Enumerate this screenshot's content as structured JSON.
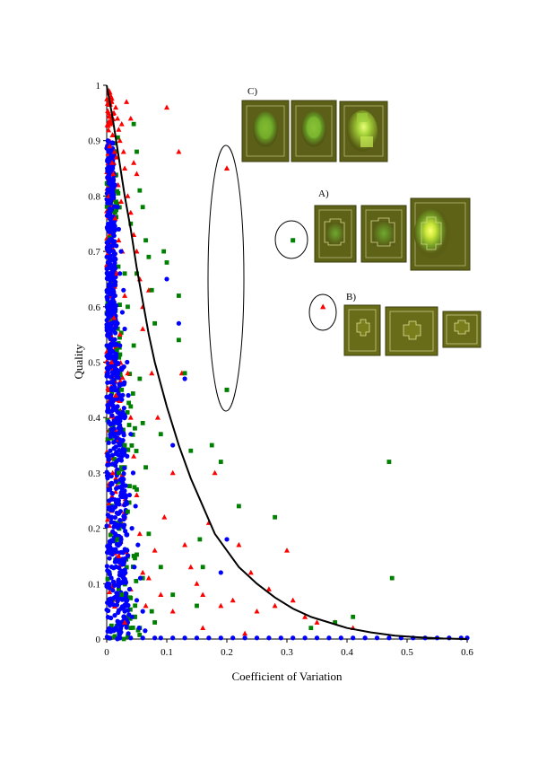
{
  "chart_data": {
    "type": "scatter",
    "title": "",
    "xlabel": "Coefficient of Variation",
    "ylabel": "Quality",
    "xlim": [
      0,
      0.6
    ],
    "ylim": [
      0,
      1
    ],
    "x_ticks": [
      "0",
      "0.1",
      "0.2",
      "0.3",
      "0.4",
      "0.5",
      "0.6"
    ],
    "y_ticks": [
      "0",
      "0.1",
      "0.2",
      "0.3",
      "0.4",
      "0.5",
      "0.6",
      "0.7",
      "0.8",
      "0.9",
      "1"
    ],
    "grid": false,
    "legend": "none",
    "colors": {
      "red": "#ff0000",
      "green": "#008000",
      "blue": "#0000ff",
      "curve": "#000000"
    },
    "series": [
      {
        "marker": "triangle",
        "color": "#ff0000",
        "points": [
          [
            0.004,
            0.99
          ],
          [
            0.008,
            0.97
          ],
          [
            0.012,
            0.95
          ],
          [
            0.006,
            0.93
          ],
          [
            0.015,
            0.96
          ],
          [
            0.01,
            0.91
          ],
          [
            0.018,
            0.94
          ],
          [
            0.005,
            0.89
          ],
          [
            0.02,
            0.92
          ],
          [
            0.013,
            0.88
          ],
          [
            0.009,
            0.86
          ],
          [
            0.022,
            0.9
          ],
          [
            0.016,
            0.87
          ],
          [
            0.003,
            0.95
          ],
          [
            0.025,
            0.93
          ],
          [
            0.007,
            0.98
          ],
          [
            0.011,
            0.84
          ],
          [
            0.019,
            0.82
          ],
          [
            0.028,
            0.88
          ],
          [
            0.004,
            0.8
          ],
          [
            0.024,
            0.79
          ],
          [
            0.03,
            0.85
          ],
          [
            0.014,
            0.76
          ],
          [
            0.035,
            0.8
          ],
          [
            0.02,
            0.72
          ],
          [
            0.04,
            0.77
          ],
          [
            0.026,
            0.7
          ],
          [
            0.045,
            0.73
          ],
          [
            0.017,
            0.66
          ],
          [
            0.05,
            0.7
          ],
          [
            0.03,
            0.62
          ],
          [
            0.055,
            0.65
          ],
          [
            0.012,
            0.58
          ],
          [
            0.06,
            0.6
          ],
          [
            0.022,
            0.55
          ],
          [
            0.008,
            0.5
          ],
          [
            0.035,
            0.48
          ],
          [
            0.015,
            0.44
          ],
          [
            0.04,
            0.4
          ],
          [
            0.02,
            0.36
          ],
          [
            0.045,
            0.33
          ],
          [
            0.01,
            0.3
          ],
          [
            0.05,
            0.26
          ],
          [
            0.03,
            0.22
          ],
          [
            0.055,
            0.19
          ],
          [
            0.02,
            0.15
          ],
          [
            0.06,
            0.12
          ],
          [
            0.04,
            0.09
          ],
          [
            0.065,
            0.06
          ],
          [
            0.03,
            0.03
          ],
          [
            0.07,
            0.11
          ],
          [
            0.08,
            0.16
          ],
          [
            0.09,
            0.08
          ],
          [
            0.1,
            0.96
          ],
          [
            0.12,
            0.88
          ],
          [
            0.096,
            0.22
          ],
          [
            0.13,
            0.17
          ],
          [
            0.14,
            0.13
          ],
          [
            0.15,
            0.1
          ],
          [
            0.16,
            0.08
          ],
          [
            0.17,
            0.21
          ],
          [
            0.18,
            0.3
          ],
          [
            0.19,
            0.06
          ],
          [
            0.2,
            0.85
          ],
          [
            0.21,
            0.07
          ],
          [
            0.22,
            0.17
          ],
          [
            0.24,
            0.12
          ],
          [
            0.25,
            0.05
          ],
          [
            0.27,
            0.09
          ],
          [
            0.28,
            0.06
          ],
          [
            0.3,
            0.16
          ],
          [
            0.31,
            0.07
          ],
          [
            0.33,
            0.04
          ],
          [
            0.35,
            0.03
          ],
          [
            0.38,
            0.03
          ],
          [
            0.41,
            0.02
          ],
          [
            0.06,
            0.56
          ],
          [
            0.07,
            0.63
          ],
          [
            0.075,
            0.48
          ],
          [
            0.085,
            0.4
          ],
          [
            0.11,
            0.05
          ],
          [
            0.125,
            0.48
          ],
          [
            0.045,
            0.86
          ],
          [
            0.05,
            0.84
          ],
          [
            0.04,
            0.94
          ],
          [
            0.033,
            0.97
          ],
          [
            0.11,
            0.3
          ],
          [
            0.16,
            0.02
          ],
          [
            0.23,
            0.01
          ],
          [
            0.36,
            0.6
          ]
        ]
      },
      {
        "marker": "square",
        "color": "#008000",
        "points": [
          [
            0.045,
            0.93
          ],
          [
            0.05,
            0.88
          ],
          [
            0.055,
            0.81
          ],
          [
            0.06,
            0.78
          ],
          [
            0.04,
            0.75
          ],
          [
            0.065,
            0.72
          ],
          [
            0.07,
            0.69
          ],
          [
            0.05,
            0.66
          ],
          [
            0.075,
            0.63
          ],
          [
            0.035,
            0.6
          ],
          [
            0.08,
            0.57
          ],
          [
            0.045,
            0.53
          ],
          [
            0.055,
            0.47
          ],
          [
            0.04,
            0.42
          ],
          [
            0.06,
            0.39
          ],
          [
            0.03,
            0.35
          ],
          [
            0.065,
            0.31
          ],
          [
            0.05,
            0.27
          ],
          [
            0.035,
            0.23
          ],
          [
            0.07,
            0.19
          ],
          [
            0.045,
            0.15
          ],
          [
            0.06,
            0.11
          ],
          [
            0.025,
            0.08
          ],
          [
            0.075,
            0.05
          ],
          [
            0.04,
            0.02
          ],
          [
            0.09,
            0.37
          ],
          [
            0.095,
            0.7
          ],
          [
            0.1,
            0.68
          ],
          [
            0.12,
            0.62
          ],
          [
            0.12,
            0.54
          ],
          [
            0.13,
            0.48
          ],
          [
            0.14,
            0.34
          ],
          [
            0.155,
            0.18
          ],
          [
            0.16,
            0.13
          ],
          [
            0.175,
            0.35
          ],
          [
            0.19,
            0.32
          ],
          [
            0.2,
            0.45
          ],
          [
            0.22,
            0.24
          ],
          [
            0.28,
            0.22
          ],
          [
            0.31,
            0.72
          ],
          [
            0.34,
            0.02
          ],
          [
            0.38,
            0.03
          ],
          [
            0.41,
            0.04
          ],
          [
            0.47,
            0.32
          ],
          [
            0.475,
            0.11
          ],
          [
            0.09,
            0.13
          ],
          [
            0.08,
            0.03
          ],
          [
            0.11,
            0.08
          ],
          [
            0.15,
            0.06
          ],
          [
            0.03,
            0.66
          ],
          [
            0.025,
            0.45
          ],
          [
            0.02,
            0.3
          ],
          [
            0.018,
            0.18
          ],
          [
            0.055,
            0.02
          ]
        ]
      },
      {
        "marker": "circle",
        "color": "#0000ff",
        "points": [
          [
            0.002,
            0.9
          ],
          [
            0.006,
            0.87
          ],
          [
            0.01,
            0.85
          ],
          [
            0.004,
            0.83
          ],
          [
            0.014,
            0.82
          ],
          [
            0.008,
            0.8
          ],
          [
            0.018,
            0.78
          ],
          [
            0.003,
            0.77
          ],
          [
            0.012,
            0.75
          ],
          [
            0.02,
            0.74
          ],
          [
            0.006,
            0.72
          ],
          [
            0.016,
            0.71
          ],
          [
            0.024,
            0.7
          ],
          [
            0.002,
            0.68
          ],
          [
            0.01,
            0.67
          ],
          [
            0.022,
            0.66
          ],
          [
            0.005,
            0.64
          ],
          [
            0.028,
            0.63
          ],
          [
            0.014,
            0.62
          ],
          [
            0.008,
            0.6
          ],
          [
            0.026,
            0.59
          ],
          [
            0.003,
            0.58
          ],
          [
            0.018,
            0.57
          ],
          [
            0.03,
            0.56
          ],
          [
            0.01,
            0.54
          ],
          [
            0.022,
            0.53
          ],
          [
            0.005,
            0.52
          ],
          [
            0.034,
            0.5
          ],
          [
            0.014,
            0.49
          ],
          [
            0.002,
            0.48
          ],
          [
            0.026,
            0.46
          ],
          [
            0.008,
            0.45
          ],
          [
            0.036,
            0.44
          ],
          [
            0.018,
            0.42
          ],
          [
            0.004,
            0.41
          ],
          [
            0.03,
            0.4
          ],
          [
            0.012,
            0.38
          ],
          [
            0.04,
            0.37
          ],
          [
            0.022,
            0.36
          ],
          [
            0.006,
            0.34
          ],
          [
            0.034,
            0.33
          ],
          [
            0.016,
            0.32
          ],
          [
            0.044,
            0.3
          ],
          [
            0.026,
            0.29
          ],
          [
            0.009,
            0.28
          ],
          [
            0.038,
            0.26
          ],
          [
            0.02,
            0.25
          ],
          [
            0.048,
            0.24
          ],
          [
            0.03,
            0.22
          ],
          [
            0.012,
            0.21
          ],
          [
            0.042,
            0.2
          ],
          [
            0.024,
            0.18
          ],
          [
            0.052,
            0.17
          ],
          [
            0.034,
            0.16
          ],
          [
            0.015,
            0.14
          ],
          [
            0.046,
            0.13
          ],
          [
            0.028,
            0.12
          ],
          [
            0.056,
            0.11
          ],
          [
            0.038,
            0.09
          ],
          [
            0.018,
            0.08
          ],
          [
            0.05,
            0.07
          ],
          [
            0.032,
            0.06
          ],
          [
            0.06,
            0.05
          ],
          [
            0.042,
            0.04
          ],
          [
            0.022,
            0.03
          ],
          [
            0.054,
            0.02
          ],
          [
            0.036,
            0.01
          ],
          [
            0.064,
            0.015
          ],
          [
            0.1,
            0.65
          ],
          [
            0.12,
            0.57
          ],
          [
            0.13,
            0.47
          ],
          [
            0.11,
            0.35
          ],
          [
            0.2,
            0.18
          ],
          [
            0.19,
            0.12
          ],
          [
            0.03,
            0.05
          ],
          [
            0.015,
            0.02
          ],
          [
            0.09,
            0.002
          ],
          [
            0.13,
            0.002
          ],
          [
            0.17,
            0.002
          ],
          [
            0.21,
            0.002
          ],
          [
            0.25,
            0.002
          ],
          [
            0.29,
            0.002
          ],
          [
            0.33,
            0.002
          ],
          [
            0.37,
            0.002
          ],
          [
            0.41,
            0.002
          ],
          [
            0.45,
            0.002
          ],
          [
            0.49,
            0.002
          ],
          [
            0.53,
            0.002
          ],
          [
            0.57,
            0.002
          ],
          [
            0.6,
            0.002
          ],
          [
            0.11,
            0.002
          ],
          [
            0.15,
            0.002
          ],
          [
            0.19,
            0.002
          ],
          [
            0.23,
            0.002
          ],
          [
            0.27,
            0.002
          ],
          [
            0.31,
            0.002
          ],
          [
            0.35,
            0.002
          ],
          [
            0.39,
            0.002
          ],
          [
            0.43,
            0.002
          ],
          [
            0.47,
            0.002
          ],
          [
            0.51,
            0.002
          ],
          [
            0.55,
            0.002
          ],
          [
            0.59,
            0.002
          ],
          [
            0.022,
            0.002
          ],
          [
            0.04,
            0.002
          ],
          [
            0.06,
            0.002
          ],
          [
            0.08,
            0.002
          ]
        ]
      }
    ],
    "curve": {
      "description": "threshold",
      "points": [
        [
          0.0,
          1.0
        ],
        [
          0.01,
          0.94
        ],
        [
          0.02,
          0.87
        ],
        [
          0.03,
          0.8
        ],
        [
          0.04,
          0.74
        ],
        [
          0.05,
          0.67
        ],
        [
          0.06,
          0.61
        ],
        [
          0.07,
          0.55
        ],
        [
          0.08,
          0.5
        ],
        [
          0.1,
          0.42
        ],
        [
          0.12,
          0.35
        ],
        [
          0.14,
          0.29
        ],
        [
          0.16,
          0.24
        ],
        [
          0.18,
          0.19
        ],
        [
          0.2,
          0.16
        ],
        [
          0.22,
          0.13
        ],
        [
          0.25,
          0.1
        ],
        [
          0.28,
          0.075
        ],
        [
          0.31,
          0.055
        ],
        [
          0.34,
          0.04
        ],
        [
          0.37,
          0.03
        ],
        [
          0.4,
          0.02
        ],
        [
          0.44,
          0.012
        ],
        [
          0.48,
          0.006
        ],
        [
          0.52,
          0.003
        ],
        [
          0.56,
          0.001
        ],
        [
          0.6,
          0.0
        ]
      ]
    },
    "panels": {
      "C": {
        "label": "C)"
      },
      "A": {
        "label": "A)"
      },
      "B": {
        "label": "B)"
      }
    }
  }
}
